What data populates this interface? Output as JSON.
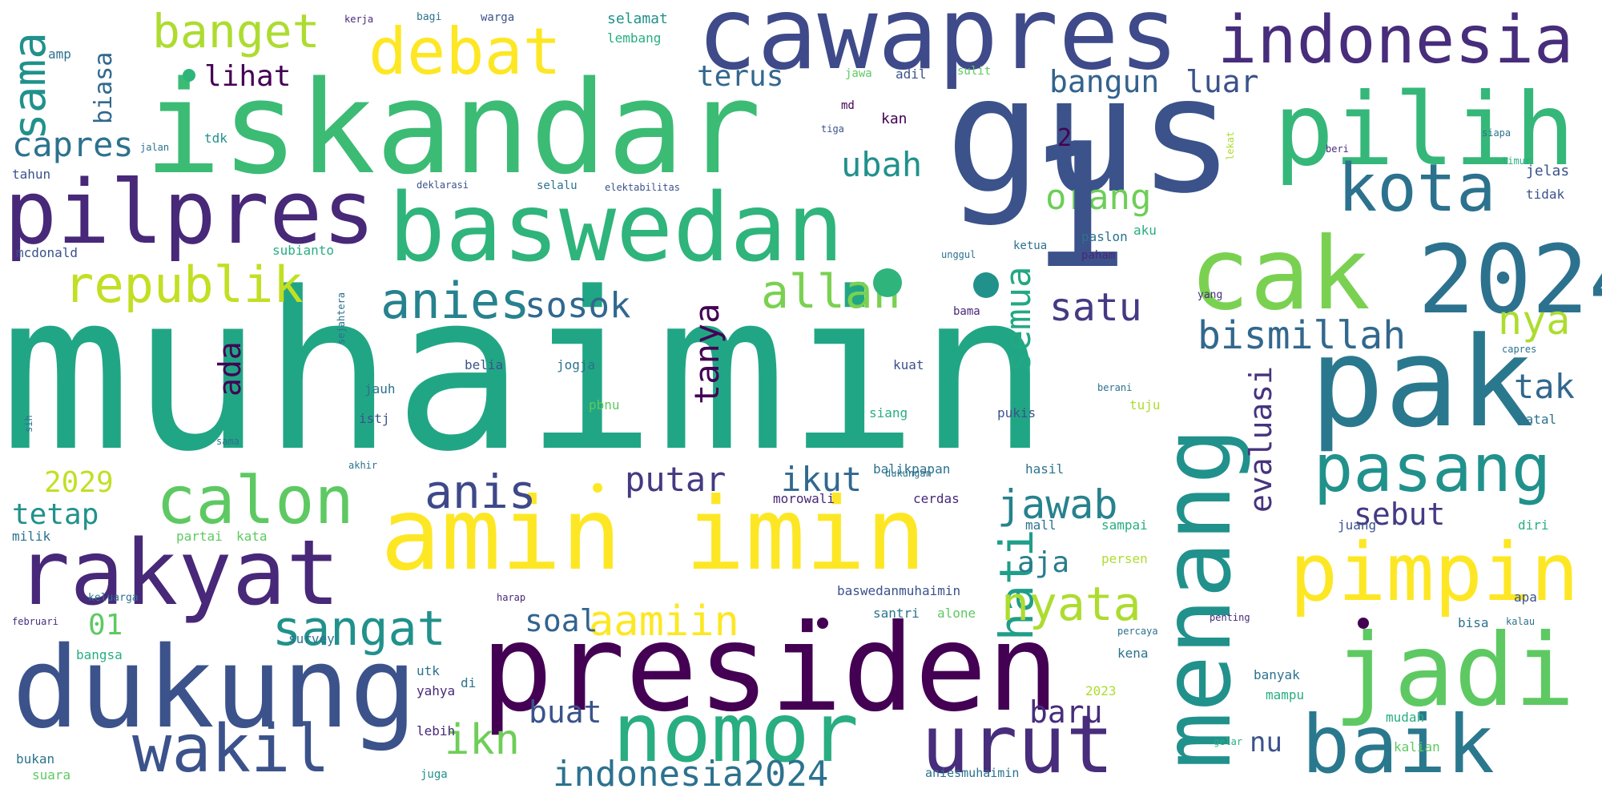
{
  "palette": {
    "background": "#ffffff",
    "colors": [
      "#440154",
      "#472d7b",
      "#3b528b",
      "#2c728e",
      "#21918c",
      "#28ae80",
      "#5ec962",
      "#addc30",
      "#fde725"
    ]
  },
  "words": [
    {
      "text": "muhaimin"
    },
    {
      "text": "iskandar"
    },
    {
      "text": "gus"
    },
    {
      "text": "cawapres"
    },
    {
      "text": "indonesia"
    },
    {
      "text": "pilih"
    },
    {
      "text": "pilpres"
    },
    {
      "text": "baswedan"
    },
    {
      "text": "debat"
    },
    {
      "text": "banget"
    },
    {
      "text": "cak"
    },
    {
      "text": "2024"
    },
    {
      "text": "pak"
    },
    {
      "text": "amin"
    },
    {
      "text": "imin"
    },
    {
      "text": "menang"
    },
    {
      "text": "presiden"
    },
    {
      "text": "dukung"
    },
    {
      "text": "rakyat"
    },
    {
      "text": "calon"
    },
    {
      "text": "jadi"
    },
    {
      "text": "pimpin"
    },
    {
      "text": "nomor"
    },
    {
      "text": "urut"
    },
    {
      "text": "baik"
    },
    {
      "text": "wakil"
    },
    {
      "text": "pasang"
    },
    {
      "text": "kota"
    },
    {
      "text": "republik"
    },
    {
      "text": "anies"
    },
    {
      "text": "allah"
    },
    {
      "text": "sosok"
    },
    {
      "text": "satu"
    },
    {
      "text": "bismillah"
    },
    {
      "text": "orang"
    },
    {
      "text": "ubah"
    },
    {
      "text": "samа"
    },
    {
      "text": "capres"
    },
    {
      "text": "biasa"
    },
    {
      "text": "lihat"
    },
    {
      "text": "terus"
    },
    {
      "text": "bangun"
    },
    {
      "text": "luar"
    },
    {
      "text": "tanya"
    },
    {
      "text": "semua"
    },
    {
      "text": "hati"
    },
    {
      "text": "evaluasi"
    },
    {
      "text": "nyata"
    },
    {
      "text": "sangat"
    },
    {
      "text": "aamiin"
    },
    {
      "text": "anis"
    },
    {
      "text": "putar"
    },
    {
      "text": "ikut"
    },
    {
      "text": "jawab"
    },
    {
      "text": "aja"
    },
    {
      "text": "soal"
    },
    {
      "text": "tak"
    },
    {
      "text": "nya"
    },
    {
      "text": "sebut"
    },
    {
      "text": "ikn"
    },
    {
      "text": "buat"
    },
    {
      "text": "baru"
    },
    {
      "text": "indonesia2024"
    },
    {
      "text": "nu"
    },
    {
      "text": "2029"
    },
    {
      "text": "tetap"
    },
    {
      "text": "01"
    },
    {
      "text": "ada"
    },
    {
      "text": "1"
    },
    {
      "text": "2"
    }
  ],
  "small_words": [
    {
      "text": "selamat"
    },
    {
      "text": "lembang"
    },
    {
      "text": "warga"
    },
    {
      "text": "bagi"
    },
    {
      "text": "kerja"
    },
    {
      "text": "amp"
    },
    {
      "text": "jawa"
    },
    {
      "text": "adil"
    },
    {
      "text": "sulit"
    },
    {
      "text": "md"
    },
    {
      "text": "kan"
    },
    {
      "text": "tdk"
    },
    {
      "text": "tahun"
    },
    {
      "text": "jalan"
    },
    {
      "text": "deklarasi"
    },
    {
      "text": "selalu"
    },
    {
      "text": "elektabilitas"
    },
    {
      "text": "subianto"
    },
    {
      "text": "ketua"
    },
    {
      "text": "paslon"
    },
    {
      "text": "paham"
    },
    {
      "text": "aku"
    },
    {
      "text": "mcdonald"
    },
    {
      "text": "tidak"
    },
    {
      "text": "jelas"
    },
    {
      "text": "beri"
    },
    {
      "text": "siapa"
    },
    {
      "text": "lekat"
    },
    {
      "text": "yang"
    },
    {
      "text": "unggul"
    },
    {
      "text": "sejahtera"
    },
    {
      "text": "bama"
    },
    {
      "text": "belia"
    },
    {
      "text": "jogja"
    },
    {
      "text": "pbnu"
    },
    {
      "text": "jauh"
    },
    {
      "text": "istj"
    },
    {
      "text": "kuat"
    },
    {
      "text": "siang"
    },
    {
      "text": "pukis"
    },
    {
      "text": "tuju"
    },
    {
      "text": "natal"
    },
    {
      "text": "milik"
    },
    {
      "text": "partai"
    },
    {
      "text": "kata"
    },
    {
      "text": "balikpapan"
    },
    {
      "text": "hasil"
    },
    {
      "text": "morowali"
    },
    {
      "text": "cerdas"
    },
    {
      "text": "sampai"
    },
    {
      "text": "mall"
    },
    {
      "text": "juang"
    },
    {
      "text": "diri"
    },
    {
      "text": "persen"
    },
    {
      "text": "baswedanmuhaimin"
    },
    {
      "text": "santri"
    },
    {
      "text": "alone"
    },
    {
      "text": "bisa"
    },
    {
      "text": "apa"
    },
    {
      "text": "survey"
    },
    {
      "text": "bangsa"
    },
    {
      "text": "februari"
    },
    {
      "text": "keluarga"
    },
    {
      "text": "harap"
    },
    {
      "text": "utk"
    },
    {
      "text": "di"
    },
    {
      "text": "yahya"
    },
    {
      "text": "2023"
    },
    {
      "text": "banyak"
    },
    {
      "text": "mampu"
    },
    {
      "text": "lebih"
    },
    {
      "text": "mudah"
    },
    {
      "text": "kalian"
    },
    {
      "text": "bukan"
    },
    {
      "text": "suara"
    },
    {
      "text": "juga"
    },
    {
      "text": "aniesmuhaimin"
    },
    {
      "text": "dukungan"
    },
    {
      "text": "sih"
    },
    {
      "text": "sama"
    },
    {
      "text": "akhir"
    },
    {
      "text": "berani"
    },
    {
      "text": "kena"
    },
    {
      "text": "percaya"
    },
    {
      "text": "penting"
    },
    {
      "text": "gelar"
    },
    {
      "text": "capres"
    },
    {
      "text": "tiga"
    },
    {
      "text": "timur"
    },
    {
      "text": "kalau"
    }
  ]
}
